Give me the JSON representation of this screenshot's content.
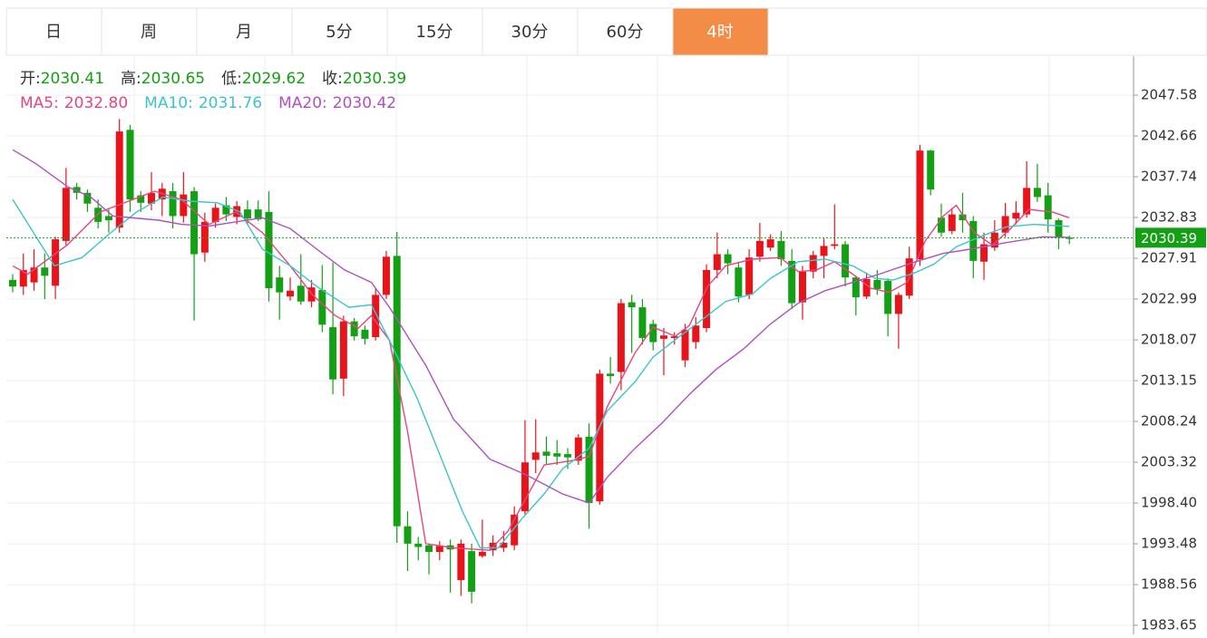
{
  "tabs": [
    "日",
    "周",
    "月",
    "5分",
    "15分",
    "30分",
    "60分",
    "4时"
  ],
  "active_tab": 7,
  "chart_data": {
    "type": "candlestick",
    "header": [
      {
        "label": "开:",
        "value": 2030.41
      },
      {
        "label": "高:",
        "value": 2030.65
      },
      {
        "label": "低:",
        "value": 2029.62
      },
      {
        "label": "收:",
        "value": 2030.39
      }
    ],
    "up_color": "#e8141a",
    "down_color": "#14a014",
    "open": [
      2025.3,
      2024.5,
      2025,
      2026.8,
      2024.6,
      2030,
      2036.5,
      2035.8,
      2034,
      2033,
      2031.6,
      2043.4,
      2035.5,
      2034.5,
      2035,
      2036,
      2033,
      2036,
      2028.6,
      2032.3,
      2034.3,
      2032.9,
      2033.8,
      2033.8,
      2033.5,
      2025.6,
      2023.3,
      2024.6,
      2022.7,
      2024.1,
      2019.6,
      2013.4,
      2020.3,
      2019.3,
      2018.4,
      2023.5,
      2028.2,
      1995.6,
      1993.5,
      1993.3,
      1992.5,
      1993.3,
      1989.1,
      1992.6,
      1992,
      1992.7,
      1993,
      1993.3,
      1997.4,
      2003.6,
      2004.6,
      2004.4,
      2004.3,
      2003.5,
      2006.4,
      1998.6,
      2014,
      2014.2,
      2022.6,
      2022,
      2020,
      2018.2,
      2018.3,
      2015.6,
      2017.8,
      2019.5,
      2026.5,
      2028.4,
      2026.8,
      2023.5,
      2028.1,
      2029.2,
      2030,
      2027.6,
      2022.6,
      2026.3,
      2028.2,
      2029.4,
      2029.6,
      2025.6,
      2023.3,
      2025.3,
      2025.2,
      2021.2,
      2023.4,
      2027.8,
      2040.9,
      2032.8,
      2031.2,
      2033.2,
      2032.4,
      2027.5,
      2029.2,
      2031,
      2032.7,
      2033.2,
      2036.4,
      2035.5,
      2032.5,
      2030.41
    ],
    "high": [
      2026,
      2028.5,
      2029,
      2028.5,
      2030.5,
      2038.8,
      2037,
      2036.2,
      2035,
      2033.8,
      2044.7,
      2044,
      2036,
      2038.3,
      2037,
      2037,
      2038.3,
      2036.5,
      2033.4,
      2034.5,
      2035.3,
      2034.8,
      2034.9,
      2034.9,
      2036,
      2027,
      2025.6,
      2028.4,
      2025.3,
      2027.1,
      2027.4,
      2021,
      2020.7,
      2019.8,
      2024.3,
      2028.8,
      2031.1,
      1997.4,
      1994.3,
      1993.5,
      1993.8,
      1994,
      1994,
      1993.5,
      1996.4,
      1994.5,
      1995,
      1998,
      2008.4,
      2008.5,
      2006.4,
      2006,
      2005,
      2006.7,
      2008,
      2014.5,
      2016,
      2023,
      2023.5,
      2023,
      2020.5,
      2019.5,
      2019,
      2020,
      2020.8,
      2027.2,
      2031,
      2029,
      2027.5,
      2029,
      2032.2,
      2030.8,
      2031.2,
      2029,
      2027,
      2028.8,
      2030.3,
      2034.4,
      2030,
      2025.8,
      2026.2,
      2026.5,
      2025.5,
      2023.8,
      2029.3,
      2041.6,
      2041,
      2034.5,
      2034,
      2035.8,
      2033,
      2031,
      2032.5,
      2034.6,
      2034.8,
      2039.6,
      2039.3,
      2037,
      2032.7,
      2030.65
    ],
    "low": [
      2023.8,
      2023.5,
      2024,
      2023,
      2023,
      2029.5,
      2035,
      2033.5,
      2031.5,
      2031,
      2031,
      2033.5,
      2033.5,
      2033.7,
      2033,
      2031.5,
      2032.2,
      2020.4,
      2027.5,
      2031.6,
      2032.4,
      2032,
      2032,
      2032.4,
      2022.7,
      2020.5,
      2022.8,
      2022.3,
      2022,
      2019,
      2011.5,
      2011.3,
      2018,
      2017.5,
      2018,
      2023,
      1993.6,
      1990.2,
      1991.5,
      1989.8,
      1991.5,
      1987.6,
      1987.2,
      1986.3,
      1991.8,
      1992,
      1992.5,
      1992.7,
      1997,
      2002,
      2003,
      2003,
      2002.5,
      2003,
      1995.3,
      1998.2,
      2012.8,
      2012,
      2016.5,
      2017.5,
      2016.8,
      2013.8,
      2017.5,
      2014.8,
      2017,
      2019,
      2025.5,
      2026,
      2022.6,
      2023,
      2027.5,
      2028.8,
      2027,
      2021.8,
      2020.5,
      2025.5,
      2025.5,
      2029,
      2024.5,
      2021,
      2023,
      2023.5,
      2018.5,
      2017,
      2023,
      2027,
      2035.5,
      2030.5,
      2030.8,
      2031,
      2025.5,
      2025.3,
      2028.8,
      2030.5,
      2032,
      2032.8,
      2034.7,
      2031,
      2029,
      2029.62
    ],
    "close": [
      2024.5,
      2026.5,
      2026.8,
      2025.8,
      2030.2,
      2036.4,
      2035.8,
      2034.5,
      2032.3,
      2032.5,
      2043.2,
      2035,
      2034.6,
      2035.8,
      2036.3,
      2033,
      2035.6,
      2028.4,
      2032.3,
      2034,
      2033.2,
      2034.2,
      2032.7,
      2032.6,
      2024.3,
      2023.8,
      2024,
      2022.7,
      2024.4,
      2019.9,
      2013.3,
      2020.3,
      2018.5,
      2018.2,
      2023.5,
      2028.1,
      1995.6,
      1993.5,
      1993.1,
      1992.5,
      1993.2,
      1992.8,
      1993.5,
      1987.7,
      1992.5,
      1993.6,
      1993.6,
      1997,
      2003.3,
      2004.5,
      2004.1,
      2004,
      2003.9,
      2006.3,
      1998.4,
      2014,
      2013.7,
      2022.5,
      2022,
      2018.3,
      2017.8,
      2018.6,
      2018.5,
      2019.3,
      2019.8,
      2026.5,
      2028.4,
      2027.3,
      2023.3,
      2028,
      2030,
      2030.2,
      2027.8,
      2022.5,
      2026.3,
      2028.3,
      2029.4,
      2029.6,
      2025.6,
      2023.2,
      2025.4,
      2024.2,
      2021.2,
      2023.5,
      2027.9,
      2040.9,
      2036.2,
      2031,
      2033.2,
      2032.5,
      2027.6,
      2029.6,
      2031,
      2033,
      2033.4,
      2036.4,
      2035.3,
      2032.6,
      2030.4,
      2030.39
    ],
    "series": [
      {
        "label": "MA5:",
        "last": 2032.8,
        "last_label": "2032.80",
        "color": "#e8457c",
        "x": [
          0,
          1.4,
          5.1,
          8.2,
          13.3,
          15.8,
          18.4,
          20.9,
          23.4,
          26,
          28.1,
          30.2,
          32.4,
          33.6,
          35.3,
          37,
          38.7,
          41.3,
          44.7,
          46.4,
          48.1,
          49.8,
          52.3,
          54,
          55.7,
          58.3,
          60,
          62.1,
          63.4,
          65.1,
          66.8,
          69.3,
          71.9,
          73.6,
          75.3,
          77,
          78.7,
          80.4,
          82.1,
          83.8,
          85.5,
          87.2,
          88.4,
          90.1,
          91.8,
          93.5,
          95.2,
          97.4,
          99
        ],
        "values": [
          2027,
          2026,
          2029.5,
          2033.5,
          2036,
          2035,
          2032,
          2033.5,
          2031,
          2027,
          2023.5,
          2021,
          2019.5,
          2021,
          2018,
          2007,
          1993.5,
          1993,
          1992.7,
          1995,
          1999,
          2003,
          2003.5,
          2004,
          2010,
          2016.5,
          2019.6,
          2018.5,
          2019.8,
          2024.5,
          2027,
          2027.8,
          2028,
          2026.3,
          2026.5,
          2027.5,
          2026,
          2024.3,
          2023.8,
          2025,
          2030,
          2033,
          2034.3,
          2031,
          2029.5,
          2031.5,
          2033.8,
          2033.5,
          2032.8
        ]
      },
      {
        "label": "MA10:",
        "last": 2031.76,
        "color": "#3cc4cc",
        "x": [
          0,
          3.9,
          6.5,
          9,
          11.6,
          14.1,
          16.7,
          19.2,
          21.3,
          23.4,
          26,
          28.5,
          31.5,
          33.6,
          35.3,
          37.9,
          40.4,
          42.1,
          43.8,
          45.5,
          47.7,
          49.8,
          51.5,
          54,
          55.7,
          58.3,
          60,
          62.5,
          65.1,
          66.8,
          69.3,
          71,
          73.6,
          76.1,
          78.7,
          80.8,
          82.5,
          84.6,
          86.3,
          88.4,
          90.6,
          93.1,
          95.7,
          99
        ],
        "values": [
          2035,
          2027,
          2028,
          2030.8,
          2033.5,
          2035.3,
          2034.8,
          2034.6,
          2033.5,
          2029,
          2027,
          2024.5,
          2022,
          2022.3,
          2018,
          2011,
          2003,
          1997.5,
          1993,
          1993,
          1996.5,
          1999.5,
          2002.5,
          2005,
          2009.5,
          2013,
          2016,
          2018.5,
          2021,
          2022.7,
          2023.6,
          2025.5,
          2027.5,
          2027.8,
          2027,
          2025.5,
          2025.3,
          2026.2,
          2027.2,
          2029.3,
          2030.5,
          2031.7,
          2032,
          2031.76
        ]
      },
      {
        "label": "MA20:",
        "last": 2030.42,
        "color": "#b050c0",
        "x": [
          0,
          2.2,
          5.2,
          7.3,
          9.4,
          13.7,
          15.8,
          18.4,
          23.4,
          26,
          28.5,
          31.1,
          33.6,
          35.3,
          38.7,
          41.3,
          44.7,
          48.1,
          51.5,
          54,
          55.7,
          58.3,
          60.8,
          63.4,
          65.9,
          68.5,
          71,
          73.6,
          76.1,
          78.7,
          81.2,
          84.6,
          87.2,
          89.7,
          93.1,
          96.5,
          99
        ],
        "values": [
          2041,
          2039.3,
          2036.5,
          2035.3,
          2033,
          2032.5,
          2032,
          2031.8,
          2032.8,
          2031.5,
          2029,
          2026.5,
          2025,
          2022,
          2015,
          2008.5,
          2003.7,
          2001.8,
          1999.5,
          1998.4,
          2001.5,
          2005,
          2008,
          2011.5,
          2014.5,
          2017,
          2020,
          2022.5,
          2024,
          2025,
          2026,
          2027.5,
          2028.5,
          2029,
          2029.8,
          2030.5,
          2030.42
        ]
      }
    ],
    "last_price": 2030.39,
    "last_color": "#14a014",
    "ylim": [
      1982.56,
      2052.28
    ],
    "yticks": [
      2047.58,
      2042.66,
      2037.74,
      2032.83,
      2027.91,
      2022.99,
      2018.07,
      2013.15,
      2008.24,
      2003.32,
      {
        "value": 1998.4,
        "label": "1998.40"
      },
      1993.48,
      1988.56,
      1983.65
    ],
    "grid": true
  }
}
